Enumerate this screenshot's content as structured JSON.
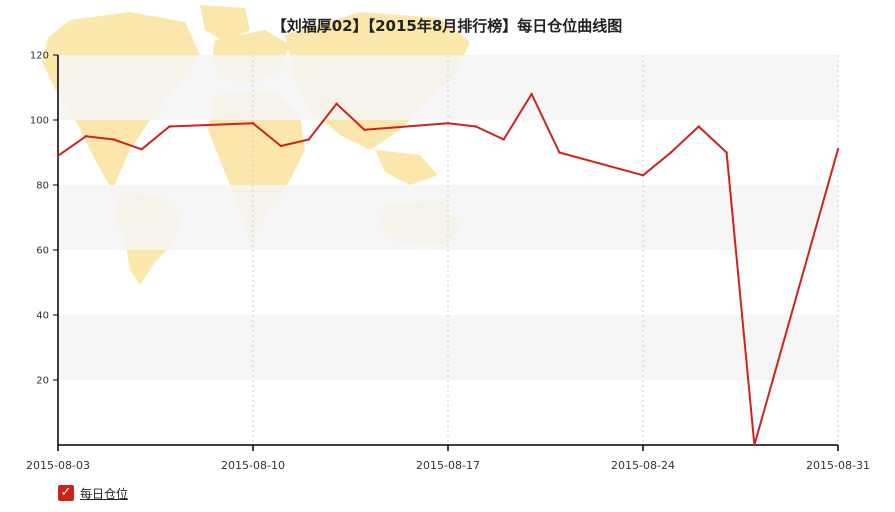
{
  "colors": {
    "series": "#d0221c",
    "band": "#f4f4f4",
    "map": "#fbe5a4",
    "axis": "#000000",
    "grid": "#cccccc"
  },
  "legend": {
    "checked": true,
    "check_icon": "checkmark-icon"
  },
  "chart_data": {
    "type": "line",
    "title": "【刘福厚02】【2015年8月排行榜】每日仓位曲线图",
    "xlabel": "",
    "ylabel": "",
    "ylim": [
      0,
      120
    ],
    "yticks": [
      "20",
      "40",
      "60",
      "80",
      "100",
      "120"
    ],
    "xlim": [
      "2015-08-03",
      "2015-08-31"
    ],
    "xticks": [
      "2015-08-03",
      "2015-08-10",
      "2015-08-17",
      "2015-08-24",
      "2015-08-31"
    ],
    "grid": "vertical dotted lines at x ticks, alternating horizontal bands",
    "legend_position": "bottom-left",
    "series": [
      {
        "name": "每日仓位",
        "points": [
          {
            "x": "2015-08-03",
            "y": 89
          },
          {
            "x": "2015-08-04",
            "y": 95
          },
          {
            "x": "2015-08-05",
            "y": 94
          },
          {
            "x": "2015-08-06",
            "y": 91
          },
          {
            "x": "2015-08-07",
            "y": 98
          },
          {
            "x": "2015-08-10",
            "y": 99
          },
          {
            "x": "2015-08-11",
            "y": 92
          },
          {
            "x": "2015-08-12",
            "y": 94
          },
          {
            "x": "2015-08-13",
            "y": 105
          },
          {
            "x": "2015-08-14",
            "y": 97
          },
          {
            "x": "2015-08-17",
            "y": 99
          },
          {
            "x": "2015-08-18",
            "y": 98
          },
          {
            "x": "2015-08-19",
            "y": 94
          },
          {
            "x": "2015-08-20",
            "y": 108
          },
          {
            "x": "2015-08-21",
            "y": 90
          },
          {
            "x": "2015-08-24",
            "y": 83
          },
          {
            "x": "2015-08-25",
            "y": 90
          },
          {
            "x": "2015-08-26",
            "y": 98
          },
          {
            "x": "2015-08-27",
            "y": 90
          },
          {
            "x": "2015-08-28",
            "y": 0
          },
          {
            "x": "2015-08-31",
            "y": 91
          }
        ]
      }
    ]
  }
}
